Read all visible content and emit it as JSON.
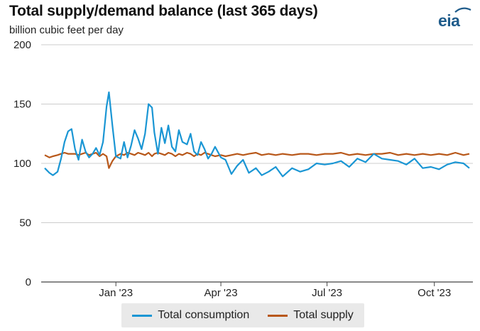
{
  "header": {
    "title": "Total supply/demand balance (last 365 days)",
    "subtitle": "billion cubic feet per day",
    "logo_text": "eia"
  },
  "colors": {
    "consumption": "#1a96d4",
    "supply": "#b8581a",
    "grid": "#cccccc",
    "logo": "#1f5c8b"
  },
  "chart_data": {
    "type": "line",
    "title": "Total supply/demand balance (last 365 days)",
    "ylabel": "billion cubic feet per day",
    "xlabel": "",
    "ylim": [
      0,
      200
    ],
    "yticks": [
      0,
      50,
      100,
      150,
      200
    ],
    "x_tick_labels": [
      {
        "label": "Jan '23",
        "date": "2023-01-01"
      },
      {
        "label": "Apr '23",
        "date": "2023-04-01"
      },
      {
        "label": "Jul '23",
        "date": "2023-07-01"
      },
      {
        "label": "Oct '23",
        "date": "2023-10-01"
      }
    ],
    "grid": "horizontal",
    "legend_position": "bottom",
    "x": [
      "2022-11-01",
      "2022-11-05",
      "2022-11-08",
      "2022-11-12",
      "2022-11-15",
      "2022-11-18",
      "2022-11-21",
      "2022-11-24",
      "2022-11-27",
      "2022-11-30",
      "2022-12-03",
      "2022-12-06",
      "2022-12-09",
      "2022-12-12",
      "2022-12-15",
      "2022-12-18",
      "2022-12-21",
      "2022-12-24",
      "2022-12-26",
      "2022-12-29",
      "2023-01-01",
      "2023-01-05",
      "2023-01-08",
      "2023-01-11",
      "2023-01-14",
      "2023-01-17",
      "2023-01-20",
      "2023-01-23",
      "2023-01-26",
      "2023-01-29",
      "2023-02-01",
      "2023-02-03",
      "2023-02-06",
      "2023-02-09",
      "2023-02-12",
      "2023-02-15",
      "2023-02-18",
      "2023-02-21",
      "2023-02-24",
      "2023-02-27",
      "2023-03-03",
      "2023-03-06",
      "2023-03-09",
      "2023-03-12",
      "2023-03-15",
      "2023-03-18",
      "2023-03-21",
      "2023-03-24",
      "2023-03-27",
      "2023-04-01",
      "2023-04-05",
      "2023-04-10",
      "2023-04-15",
      "2023-04-20",
      "2023-04-25",
      "2023-05-01",
      "2023-05-06",
      "2023-05-12",
      "2023-05-18",
      "2023-05-24",
      "2023-06-01",
      "2023-06-08",
      "2023-06-15",
      "2023-06-22",
      "2023-06-29",
      "2023-07-06",
      "2023-07-13",
      "2023-07-20",
      "2023-07-27",
      "2023-08-03",
      "2023-08-10",
      "2023-08-17",
      "2023-08-24",
      "2023-08-31",
      "2023-09-07",
      "2023-09-14",
      "2023-09-21",
      "2023-09-28",
      "2023-10-05",
      "2023-10-12",
      "2023-10-19",
      "2023-10-26",
      "2023-10-31"
    ],
    "series": [
      {
        "name": "Total consumption",
        "values": [
          96,
          92,
          90,
          93,
          104,
          118,
          127,
          129,
          112,
          103,
          120,
          110,
          105,
          108,
          113,
          107,
          118,
          148,
          160,
          132,
          106,
          104,
          118,
          105,
          115,
          128,
          121,
          112,
          125,
          150,
          147,
          126,
          108,
          130,
          117,
          132,
          114,
          110,
          128,
          118,
          116,
          125,
          110,
          107,
          118,
          112,
          104,
          108,
          114,
          105,
          103,
          91,
          98,
          103,
          92,
          96,
          90,
          93,
          97,
          89,
          96,
          93,
          95,
          100,
          99,
          100,
          102,
          97,
          104,
          101,
          108,
          104,
          103,
          102,
          99,
          104,
          96,
          97,
          95,
          99,
          101,
          100,
          96
        ]
      },
      {
        "name": "Total supply",
        "values": [
          107,
          105,
          106,
          107,
          108,
          109,
          108,
          108,
          108,
          107,
          108,
          109,
          107,
          108,
          109,
          106,
          108,
          106,
          96,
          102,
          106,
          108,
          107,
          109,
          108,
          107,
          109,
          108,
          107,
          109,
          106,
          108,
          109,
          108,
          107,
          109,
          108,
          106,
          108,
          107,
          109,
          108,
          106,
          108,
          107,
          109,
          108,
          107,
          106,
          107,
          106,
          107,
          108,
          107,
          108,
          109,
          107,
          108,
          107,
          108,
          107,
          108,
          108,
          107,
          108,
          108,
          109,
          107,
          108,
          107,
          108,
          108,
          109,
          107,
          108,
          107,
          108,
          107,
          108,
          107,
          109,
          107,
          108
        ]
      }
    ]
  }
}
